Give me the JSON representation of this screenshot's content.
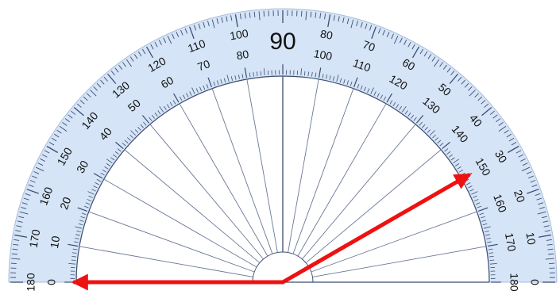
{
  "protractor": {
    "center_label": "90",
    "outer_scale": [
      "0",
      "10",
      "20",
      "30",
      "40",
      "50",
      "60",
      "70",
      "80",
      "100",
      "110",
      "120",
      "130",
      "140",
      "150",
      "160",
      "170",
      "180"
    ],
    "inner_scale": [
      "180",
      "170",
      "160",
      "150",
      "140",
      "130",
      "120",
      "110",
      "100",
      "80",
      "70",
      "60",
      "50",
      "40",
      "30",
      "20",
      "10",
      "0"
    ],
    "colors": {
      "ring": "#d5e4f6",
      "tick": "#3c4d72",
      "arrow": "#ee1111"
    }
  },
  "angle": {
    "arm1_deg": 0,
    "arm2_deg": 30
  }
}
